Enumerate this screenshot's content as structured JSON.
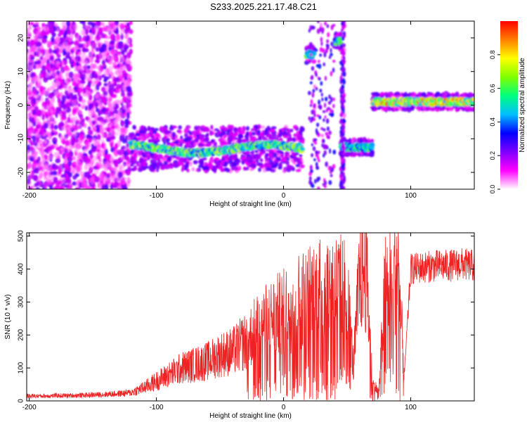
{
  "title": "S233.2025.221.17.48.C21",
  "chart_data": [
    {
      "type": "heatmap",
      "xlabel": "Height of straight line (km)",
      "ylabel": "Frequency (Hz)",
      "xlim": [
        -202,
        150
      ],
      "ylim": [
        -25,
        25
      ],
      "xticks": [
        -200,
        -100,
        0,
        100
      ],
      "yticks": [
        -20,
        -10,
        0,
        10,
        20
      ],
      "colorbar": {
        "label": "Normalized spectral amplitude",
        "range": [
          0,
          1
        ],
        "ticks": [
          "0.0",
          "0.2",
          "0.4",
          "0.6",
          "0.8"
        ],
        "colors": [
          "#ffffff",
          "#ff00ff",
          "#7f00ff",
          "#0000ff",
          "#00bfff",
          "#00ff7f",
          "#7fff00",
          "#ffff00",
          "#ff7f00",
          "#ff0000"
        ]
      },
      "features": [
        {
          "x_range": [
            -202,
            -120
          ],
          "freq_range": [
            -25,
            25
          ],
          "amplitude": 0.15
        },
        {
          "x_range": [
            -120,
            15
          ],
          "freq_center": -13,
          "amplitude": 0.6
        },
        {
          "x_range": [
            18,
            24
          ],
          "freq_center": 15,
          "amplitude": 0.55
        },
        {
          "x_range": [
            40,
            45
          ],
          "freq_center": 19,
          "amplitude": 0.55
        },
        {
          "x_range": [
            45,
            70
          ],
          "freq_center": -12.5,
          "amplitude": 0.5
        },
        {
          "x_range": [
            70,
            150
          ],
          "freq_center": 1,
          "amplitude": 0.75
        }
      ]
    },
    {
      "type": "line",
      "xlabel": "Height of straight line (km)",
      "ylabel": "SNR (10 * v/v)",
      "xlim": [
        -202,
        150
      ],
      "ylim": [
        0,
        510
      ],
      "xticks": [
        -200,
        -100,
        0,
        100
      ],
      "yticks": [
        0,
        100,
        200,
        300,
        400,
        500
      ],
      "series": [
        {
          "color": "#ee2222",
          "x": [
            -200,
            -190,
            -180,
            -170,
            -160,
            -150,
            -140,
            -130,
            -120,
            -110,
            -100,
            -90,
            -80,
            -70,
            -60,
            -50,
            -40,
            -30,
            -20,
            -10,
            0,
            10,
            20,
            30,
            40,
            50,
            55,
            60,
            65,
            70,
            75,
            80,
            85,
            90,
            95,
            100,
            110,
            120,
            130,
            140,
            150
          ],
          "values": [
            15,
            15,
            16,
            16,
            17,
            18,
            20,
            22,
            25,
            40,
            60,
            80,
            100,
            110,
            120,
            140,
            150,
            180,
            220,
            250,
            270,
            300,
            320,
            340,
            350,
            330,
            100,
            395,
            400,
            50,
            30,
            350,
            380,
            400,
            80,
            400,
            405,
            410,
            410,
            415,
            410
          ]
        }
      ]
    }
  ]
}
